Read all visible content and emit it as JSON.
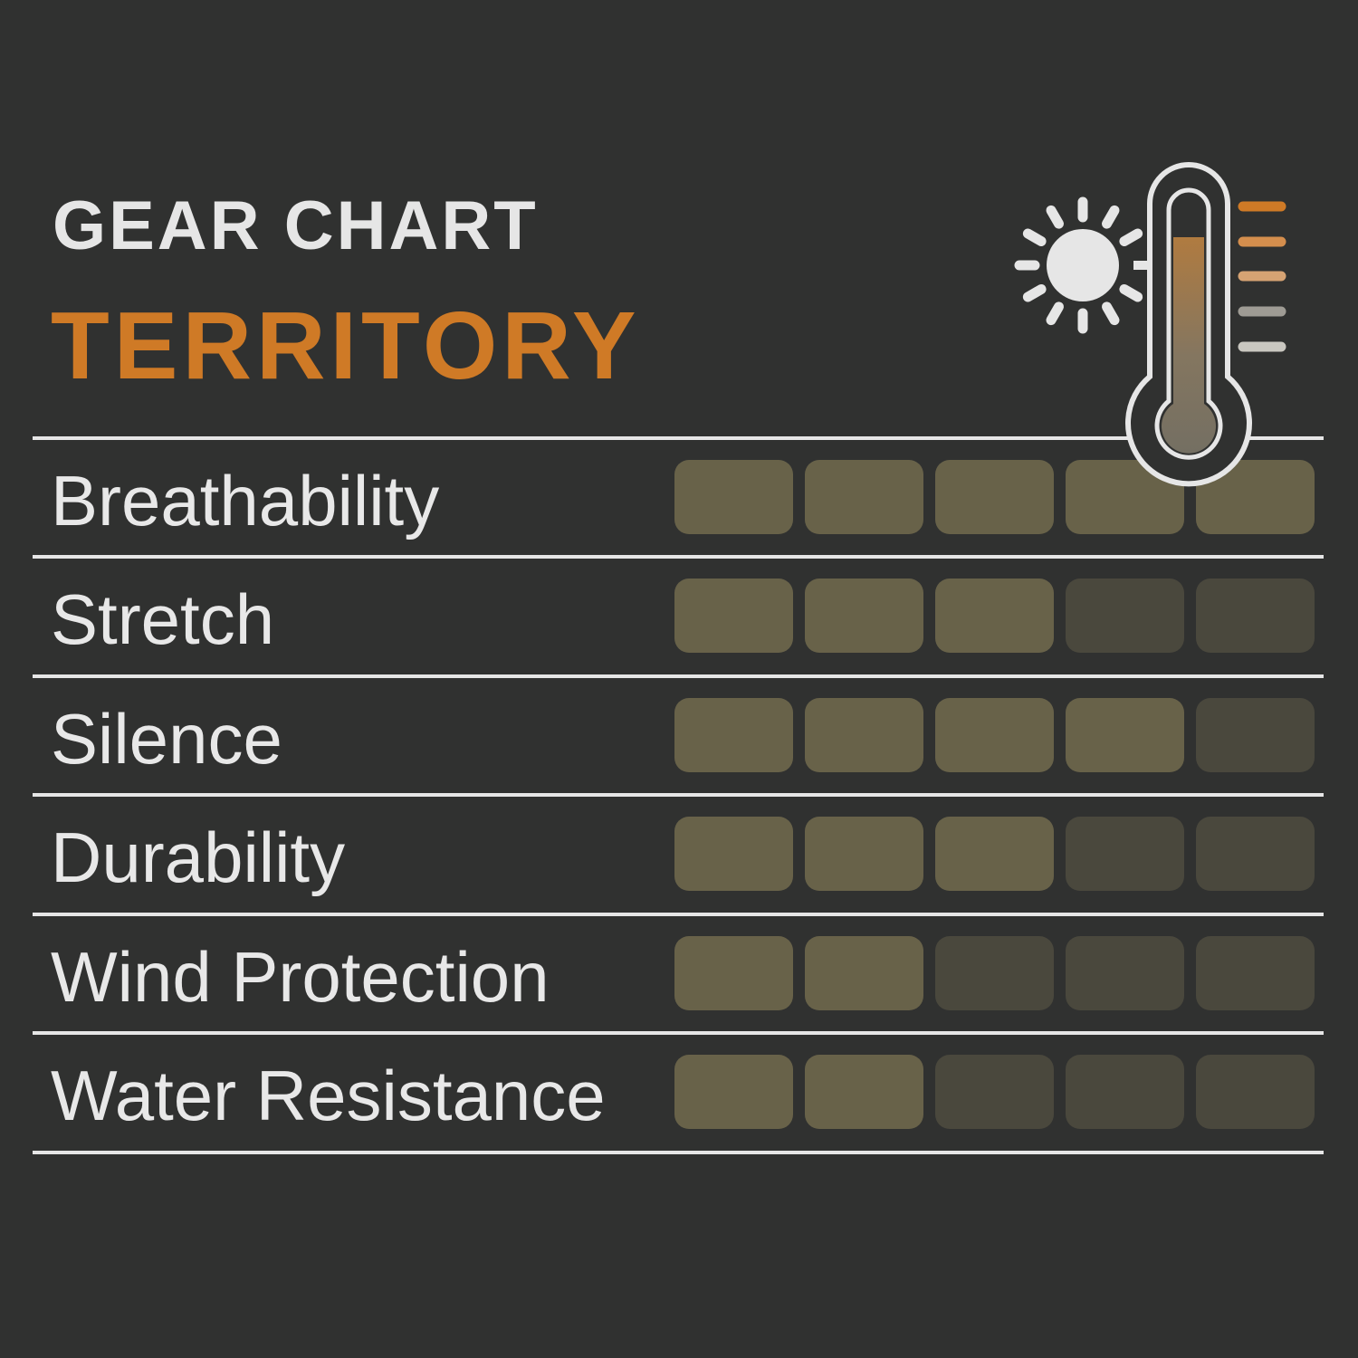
{
  "header": {
    "title": "GEAR CHART",
    "subtitle": "TERRITORY"
  },
  "colors": {
    "background": "#303130",
    "accent": "#cf7a26",
    "filled": "#686249",
    "empty": "#4a483d",
    "line": "#e6e6e6",
    "scale": [
      "#cf7a26",
      "#d48e4d",
      "#d6a373",
      "#9e9b94",
      "#c9c7c0"
    ]
  },
  "icons": [
    "sun-icon",
    "thermometer-icon"
  ],
  "chart_data": {
    "type": "table",
    "max": 5,
    "rows": [
      {
        "label": "Breathability",
        "value": 5
      },
      {
        "label": "Stretch",
        "value": 3
      },
      {
        "label": "Silence",
        "value": 4
      },
      {
        "label": "Durability",
        "value": 3
      },
      {
        "label": "Wind Protection",
        "value": 2
      },
      {
        "label": "Water Resistance",
        "value": 2
      }
    ]
  }
}
